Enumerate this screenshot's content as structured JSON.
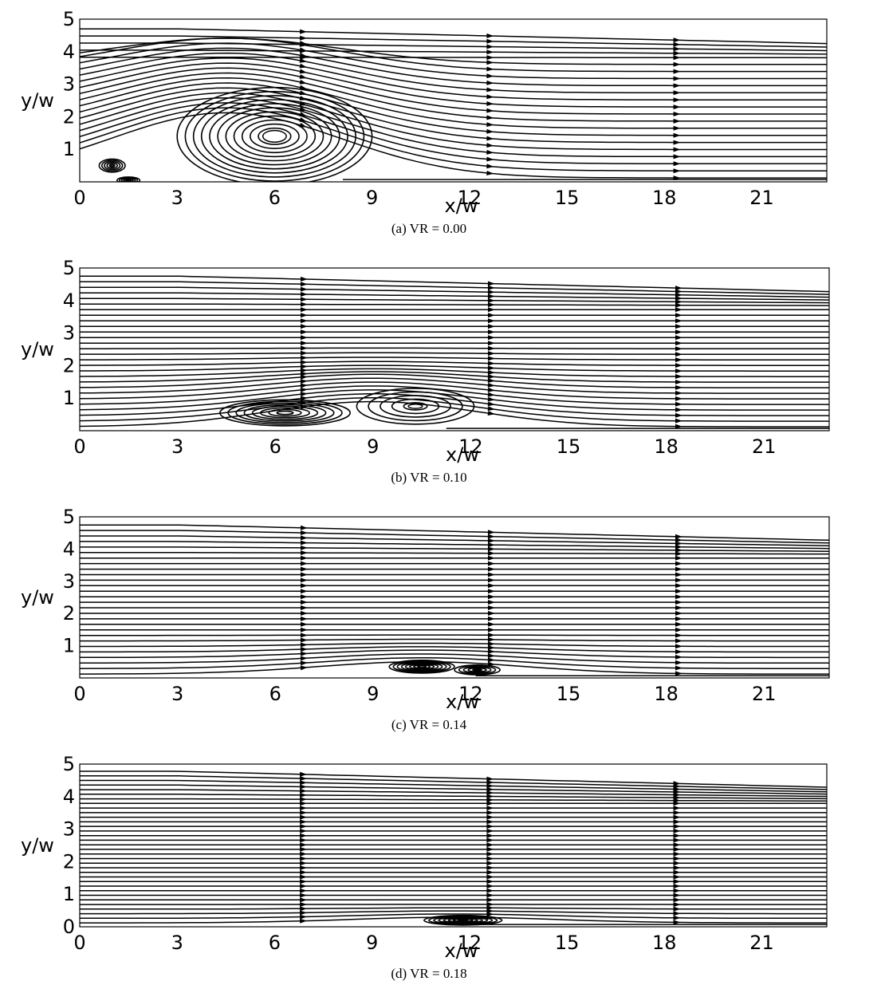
{
  "chart_data": [
    {
      "type": "streamline",
      "caption": "(a) VR = 0.00",
      "xlabel": "x/w",
      "ylabel": "y/w",
      "xlim": [
        0,
        23
      ],
      "ylim": [
        0,
        5
      ],
      "xticks": [
        "0",
        "3",
        "6",
        "9",
        "12",
        "15",
        "18",
        "21"
      ],
      "yticks": [
        "1",
        "2",
        "3",
        "4",
        "5"
      ],
      "vortices": [
        {
          "x": 6.0,
          "y": 1.4,
          "rx": 3.0,
          "ry": 1.5
        },
        {
          "x": 1.0,
          "y": 0.5,
          "rx": 0.4,
          "ry": 0.2
        },
        {
          "x": 1.5,
          "y": 0.05,
          "rx": 0.35,
          "ry": 0.1
        }
      ],
      "reattachment_x": 9.0
    },
    {
      "type": "streamline",
      "caption": "(b) VR = 0.10",
      "xlabel": "x/w",
      "ylabel": "y/w",
      "xlim": [
        0,
        23
      ],
      "ylim": [
        0,
        5
      ],
      "xticks": [
        "0",
        "3",
        "6",
        "9",
        "12",
        "15",
        "18",
        "21"
      ],
      "yticks": [
        "1",
        "2",
        "3",
        "4",
        "5"
      ],
      "vortices": [
        {
          "x": 6.3,
          "y": 0.55,
          "rx": 2.0,
          "ry": 0.4
        },
        {
          "x": 10.3,
          "y": 0.75,
          "rx": 1.8,
          "ry": 0.55
        }
      ],
      "reattachment_x": 12.5
    },
    {
      "type": "streamline",
      "caption": "(c) VR = 0.14",
      "xlabel": "x/w",
      "ylabel": "y/w",
      "xlim": [
        0,
        23
      ],
      "ylim": [
        0,
        5
      ],
      "xticks": [
        "0",
        "3",
        "6",
        "9",
        "12",
        "15",
        "18",
        "21"
      ],
      "yticks": [
        "1",
        "2",
        "3",
        "4",
        "5"
      ],
      "vortices": [
        {
          "x": 10.5,
          "y": 0.35,
          "rx": 1.0,
          "ry": 0.2
        },
        {
          "x": 12.2,
          "y": 0.25,
          "rx": 0.7,
          "ry": 0.15
        }
      ],
      "reattachment_x": 13.5
    },
    {
      "type": "streamline",
      "caption": "(d) VR = 0.18",
      "xlabel": "x/w",
      "ylabel": "y/w",
      "xlim": [
        0,
        23
      ],
      "ylim": [
        0,
        5
      ],
      "xticks": [
        "0",
        "3",
        "6",
        "9",
        "12",
        "15",
        "18",
        "21"
      ],
      "yticks": [
        "0",
        "1",
        "2",
        "3",
        "4",
        "5"
      ],
      "vortices": [
        {
          "x": 11.8,
          "y": 0.2,
          "rx": 1.2,
          "ry": 0.15
        }
      ],
      "reattachment_x": 13.0
    }
  ]
}
